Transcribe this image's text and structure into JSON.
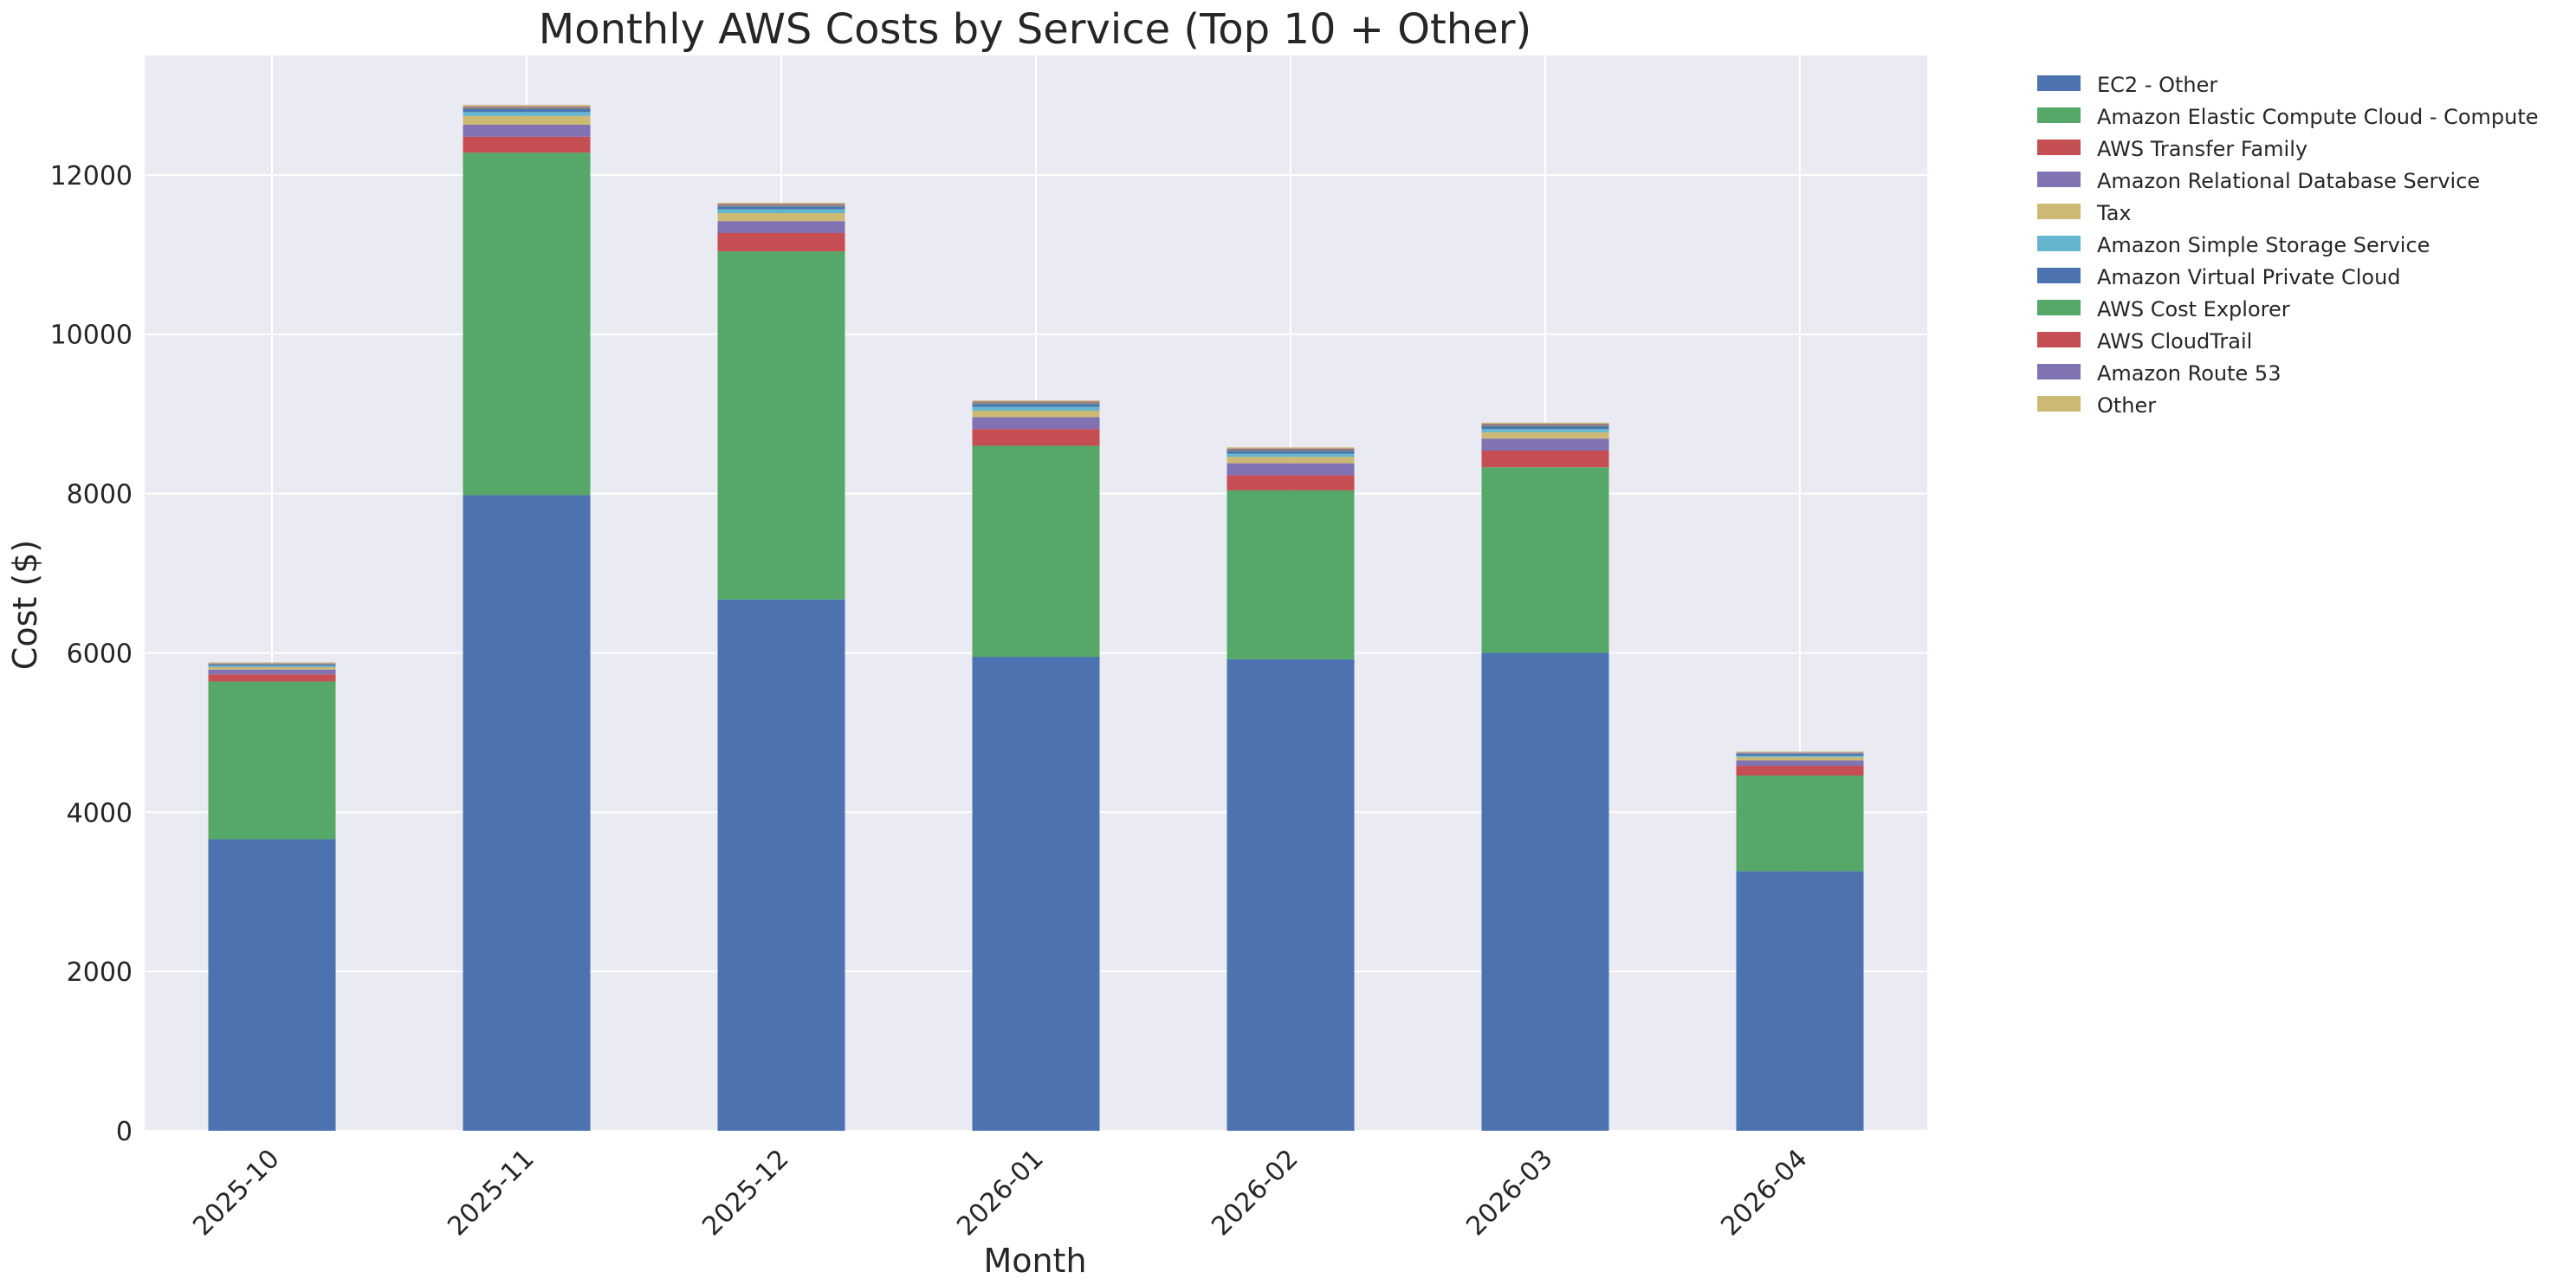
{
  "chart_data": {
    "type": "bar",
    "stacked": true,
    "title": "Monthly AWS Costs by Service (Top 10 + Other)",
    "xlabel": "Month",
    "ylabel": "Cost ($)",
    "ylim": [
      0,
      13500
    ],
    "yticks": [
      0,
      2000,
      4000,
      6000,
      8000,
      10000,
      12000
    ],
    "grid": true,
    "legend_position": "outside-top-right",
    "categories": [
      "2025-10",
      "2025-11",
      "2025-12",
      "2026-01",
      "2026-02",
      "2026-03",
      "2026-04"
    ],
    "series": [
      {
        "name": "EC2 - Other",
        "color": "#4c72b0",
        "values": [
          3660,
          7980,
          6670,
          5950,
          5920,
          6000,
          3260
        ]
      },
      {
        "name": "Amazon Elastic Compute Cloud - Compute",
        "color": "#55a868",
        "values": [
          1980,
          4300,
          4370,
          2650,
          2120,
          2330,
          1200
        ]
      },
      {
        "name": "AWS Transfer Family",
        "color": "#c44e52",
        "values": [
          90,
          200,
          230,
          210,
          190,
          210,
          120
        ]
      },
      {
        "name": "Amazon Relational Database Service",
        "color": "#8172b2",
        "values": [
          60,
          150,
          150,
          150,
          150,
          150,
          70
        ]
      },
      {
        "name": "Tax",
        "color": "#ccb974",
        "values": [
          30,
          110,
          100,
          80,
          80,
          80,
          40
        ]
      },
      {
        "name": "Amazon Simple Storage Service",
        "color": "#64b5cd",
        "values": [
          20,
          50,
          50,
          50,
          40,
          40,
          20
        ]
      },
      {
        "name": "Amazon Virtual Private Cloud",
        "color": "#4c72b0",
        "values": [
          15,
          40,
          35,
          35,
          35,
          35,
          25
        ]
      },
      {
        "name": "AWS Cost Explorer",
        "color": "#55a868",
        "values": [
          5,
          10,
          10,
          10,
          10,
          10,
          5
        ]
      },
      {
        "name": "AWS CloudTrail",
        "color": "#c44e52",
        "values": [
          5,
          10,
          10,
          10,
          10,
          10,
          5
        ]
      },
      {
        "name": "Amazon Route 53",
        "color": "#8172b2",
        "values": [
          5,
          10,
          10,
          10,
          10,
          10,
          5
        ]
      },
      {
        "name": "Other",
        "color": "#ccb974",
        "values": [
          10,
          20,
          15,
          15,
          15,
          15,
          10
        ]
      }
    ]
  }
}
